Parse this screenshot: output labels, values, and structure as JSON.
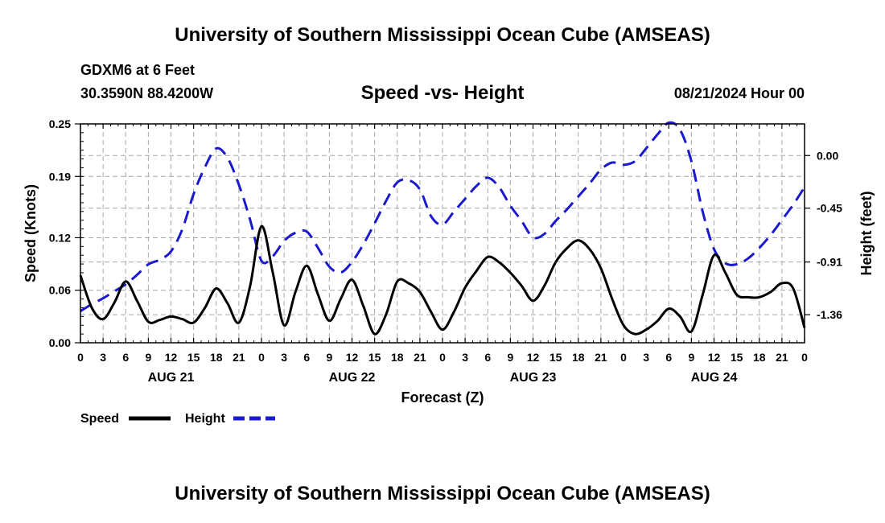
{
  "header": {
    "title": "University of Southern Mississippi Ocean Cube (AMSEAS)",
    "station": "GDXM6 at 6 Feet",
    "location": "30.3590N  88.4200W",
    "subtitle": "Speed -vs- Height",
    "run_time": "08/21/2024 Hour 00"
  },
  "footer": {
    "title": "University of Southern Mississippi Ocean Cube (AMSEAS)"
  },
  "chart_data": {
    "type": "line",
    "title": "Speed -vs- Height",
    "xlabel": "Forecast (Z)",
    "ylabel": "Speed (Knots)",
    "y2label": "Height (feet)",
    "x_range_hours": [
      0,
      96
    ],
    "ylim": [
      0,
      0.25
    ],
    "y2lim": [
      -1.6,
      0.27
    ],
    "grid": true,
    "x_tick_hours": [
      0,
      3,
      6,
      9,
      12,
      15,
      18,
      21,
      24,
      27,
      30,
      33,
      36,
      39,
      42,
      45,
      48,
      51,
      54,
      57,
      60,
      63,
      66,
      69,
      72,
      75,
      78,
      81,
      84,
      87,
      90,
      93,
      96
    ],
    "x_tick_labels": [
      "0",
      "3",
      "6",
      "9",
      "12",
      "15",
      "18",
      "21",
      "0",
      "3",
      "6",
      "9",
      "12",
      "15",
      "18",
      "21",
      "0",
      "3",
      "6",
      "9",
      "12",
      "15",
      "18",
      "21",
      "0",
      "3",
      "6",
      "9",
      "12",
      "15",
      "18",
      "21",
      "0"
    ],
    "date_labels": [
      {
        "hour": 12,
        "label": "AUG 21"
      },
      {
        "hour": 36,
        "label": "AUG 22"
      },
      {
        "hour": 60,
        "label": "AUG 23"
      },
      {
        "hour": 84,
        "label": "AUG 24"
      }
    ],
    "y_ticks": [
      0.0,
      0.06,
      0.12,
      0.19,
      0.25
    ],
    "y_tick_labels": [
      "0.00",
      "0.06",
      "0.12",
      "0.19",
      "0.25"
    ],
    "y2_ticks": [
      0.0,
      -0.45,
      -0.91,
      -1.36
    ],
    "y2_tick_labels": [
      "0.00",
      "-0.45",
      "-0.91",
      "-1.36"
    ],
    "legend": {
      "position": "bottom-left",
      "entries": [
        "Speed",
        "Height"
      ]
    },
    "series": [
      {
        "name": "Speed",
        "axis": "left",
        "color": "#000000",
        "style": "solid",
        "x": [
          0,
          1.5,
          3,
          4.5,
          6,
          7.5,
          9,
          10.5,
          12,
          13.5,
          15,
          16.5,
          18,
          19.5,
          21,
          22.5,
          24,
          25.5,
          27,
          28.5,
          30,
          31.5,
          33,
          34.5,
          36,
          37.5,
          39,
          40.5,
          42,
          43.5,
          45,
          46.5,
          48,
          49.5,
          51,
          52.5,
          54,
          55.5,
          57,
          58.5,
          60,
          61.5,
          63,
          64.5,
          66,
          67.5,
          69,
          70.5,
          72,
          73.5,
          75,
          76.5,
          78,
          79.5,
          81,
          82.5,
          84,
          85.5,
          87,
          88.5,
          90,
          91.5,
          93,
          94.5,
          96
        ],
        "values": [
          0.077,
          0.04,
          0.027,
          0.046,
          0.07,
          0.048,
          0.024,
          0.026,
          0.03,
          0.027,
          0.023,
          0.04,
          0.062,
          0.045,
          0.023,
          0.065,
          0.133,
          0.08,
          0.02,
          0.058,
          0.088,
          0.055,
          0.025,
          0.05,
          0.072,
          0.042,
          0.01,
          0.032,
          0.07,
          0.068,
          0.058,
          0.035,
          0.015,
          0.035,
          0.063,
          0.082,
          0.098,
          0.092,
          0.08,
          0.065,
          0.048,
          0.065,
          0.092,
          0.108,
          0.117,
          0.107,
          0.085,
          0.05,
          0.02,
          0.01,
          0.015,
          0.025,
          0.039,
          0.03,
          0.013,
          0.055,
          0.1,
          0.08,
          0.055,
          0.052,
          0.052,
          0.058,
          0.068,
          0.062,
          0.017
        ]
      },
      {
        "name": "Height",
        "axis": "right",
        "color": "#1a1acc",
        "style": "dashed",
        "x": [
          0,
          1.5,
          3,
          4.5,
          6,
          7.5,
          9,
          10.5,
          12,
          13.5,
          15,
          16.5,
          18,
          19.5,
          21,
          22.5,
          24,
          25.5,
          27,
          28.5,
          30,
          31.5,
          33,
          34.5,
          36,
          37.5,
          39,
          40.5,
          42,
          43.5,
          45,
          46.5,
          48,
          49.5,
          51,
          52.5,
          54,
          55.5,
          57,
          58.5,
          60,
          61.5,
          63,
          64.5,
          66,
          67.5,
          69,
          70.5,
          72,
          73.5,
          75,
          76.5,
          78,
          79.5,
          81,
          82.5,
          84,
          85.5,
          87,
          88.5,
          90,
          91.5,
          93,
          94.5,
          96
        ],
        "values": [
          -1.33,
          -1.27,
          -1.22,
          -1.16,
          -1.1,
          -1.02,
          -0.93,
          -0.89,
          -0.82,
          -0.63,
          -0.33,
          -0.1,
          0.06,
          -0.02,
          -0.25,
          -0.55,
          -0.9,
          -0.86,
          -0.73,
          -0.66,
          -0.65,
          -0.79,
          -0.95,
          -1.0,
          -0.91,
          -0.76,
          -0.58,
          -0.39,
          -0.23,
          -0.21,
          -0.29,
          -0.52,
          -0.59,
          -0.48,
          -0.37,
          -0.26,
          -0.19,
          -0.27,
          -0.43,
          -0.56,
          -0.7,
          -0.67,
          -0.56,
          -0.46,
          -0.35,
          -0.24,
          -0.12,
          -0.06,
          -0.08,
          -0.05,
          0.06,
          0.18,
          0.28,
          0.22,
          -0.05,
          -0.48,
          -0.8,
          -0.92,
          -0.93,
          -0.88,
          -0.79,
          -0.68,
          -0.55,
          -0.42,
          -0.27
        ]
      }
    ]
  }
}
